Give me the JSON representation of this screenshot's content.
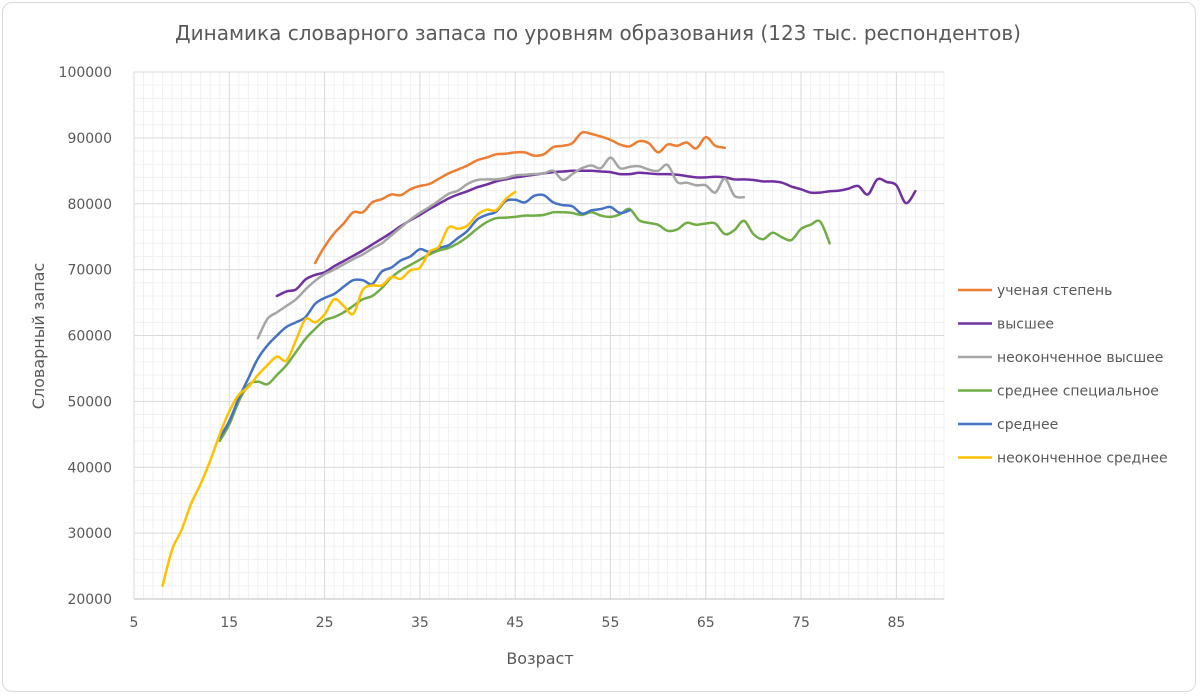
{
  "chart_data": {
    "type": "line",
    "title": "Динамика словарного запаса по уровням образования (123 тыс. респондентов)",
    "xlabel": "Возраст",
    "ylabel": "Словарный запас",
    "xlim": [
      5,
      90
    ],
    "ylim": [
      20000,
      100000
    ],
    "x_ticks": [
      "5",
      "15",
      "25",
      "35",
      "45",
      "55",
      "65",
      "75",
      "85"
    ],
    "y_ticks": [
      "20000",
      "30000",
      "40000",
      "50000",
      "60000",
      "70000",
      "80000",
      "90000",
      "100000"
    ],
    "grid": true,
    "legend_position": "right",
    "series": [
      {
        "name": "ученая степень",
        "color": "#ed7d31",
        "points": [
          [
            24,
            71000
          ],
          [
            25,
            73500
          ],
          [
            26,
            75500
          ],
          [
            27,
            77000
          ],
          [
            28,
            78700
          ],
          [
            29,
            78700
          ],
          [
            30,
            80200
          ],
          [
            31,
            80700
          ],
          [
            32,
            81400
          ],
          [
            33,
            81300
          ],
          [
            34,
            82200
          ],
          [
            35,
            82700
          ],
          [
            36,
            83000
          ],
          [
            37,
            83800
          ],
          [
            38,
            84600
          ],
          [
            39,
            85200
          ],
          [
            40,
            85800
          ],
          [
            41,
            86600
          ],
          [
            42,
            87000
          ],
          [
            43,
            87500
          ],
          [
            44,
            87600
          ],
          [
            45,
            87800
          ],
          [
            46,
            87800
          ],
          [
            47,
            87300
          ],
          [
            48,
            87500
          ],
          [
            49,
            88600
          ],
          [
            50,
            88800
          ],
          [
            51,
            89200
          ],
          [
            52,
            90800
          ],
          [
            53,
            90600
          ],
          [
            54,
            90200
          ],
          [
            55,
            89700
          ],
          [
            56,
            89000
          ],
          [
            57,
            88700
          ],
          [
            58,
            89500
          ],
          [
            59,
            89200
          ],
          [
            60,
            87800
          ],
          [
            61,
            89000
          ],
          [
            62,
            88800
          ],
          [
            63,
            89300
          ],
          [
            64,
            88400
          ],
          [
            65,
            90100
          ],
          [
            66,
            88800
          ],
          [
            67,
            88500
          ]
        ]
      },
      {
        "name": "высшее",
        "color": "#7030a0",
        "points": [
          [
            20,
            66000
          ],
          [
            21,
            66700
          ],
          [
            22,
            67000
          ],
          [
            23,
            68500
          ],
          [
            24,
            69200
          ],
          [
            25,
            69600
          ],
          [
            26,
            70500
          ],
          [
            27,
            71300
          ],
          [
            28,
            72100
          ],
          [
            29,
            72900
          ],
          [
            30,
            73800
          ],
          [
            31,
            74700
          ],
          [
            32,
            75600
          ],
          [
            33,
            76600
          ],
          [
            34,
            77500
          ],
          [
            35,
            78300
          ],
          [
            36,
            79200
          ],
          [
            37,
            80000
          ],
          [
            38,
            80800
          ],
          [
            39,
            81400
          ],
          [
            40,
            81900
          ],
          [
            41,
            82500
          ],
          [
            42,
            82900
          ],
          [
            43,
            83400
          ],
          [
            44,
            83700
          ],
          [
            45,
            84000
          ],
          [
            46,
            84200
          ],
          [
            47,
            84400
          ],
          [
            48,
            84600
          ],
          [
            49,
            84800
          ],
          [
            50,
            84900
          ],
          [
            51,
            85000
          ],
          [
            52,
            85000
          ],
          [
            53,
            85000
          ],
          [
            54,
            84900
          ],
          [
            55,
            84800
          ],
          [
            56,
            84500
          ],
          [
            57,
            84500
          ],
          [
            58,
            84700
          ],
          [
            59,
            84600
          ],
          [
            60,
            84500
          ],
          [
            61,
            84500
          ],
          [
            62,
            84400
          ],
          [
            63,
            84200
          ],
          [
            64,
            84000
          ],
          [
            65,
            84000
          ],
          [
            66,
            84100
          ],
          [
            67,
            84000
          ],
          [
            68,
            83700
          ],
          [
            69,
            83700
          ],
          [
            70,
            83600
          ],
          [
            71,
            83400
          ],
          [
            72,
            83400
          ],
          [
            73,
            83200
          ],
          [
            74,
            82600
          ],
          [
            75,
            82200
          ],
          [
            76,
            81700
          ],
          [
            77,
            81700
          ],
          [
            78,
            81900
          ],
          [
            79,
            82000
          ],
          [
            80,
            82300
          ],
          [
            81,
            82700
          ],
          [
            82,
            81400
          ],
          [
            83,
            83700
          ],
          [
            84,
            83300
          ],
          [
            85,
            82800
          ],
          [
            86,
            80100
          ],
          [
            87,
            81900
          ]
        ]
      },
      {
        "name": "неоконченное высшее",
        "color": "#a5a5a5",
        "points": [
          [
            18,
            59600
          ],
          [
            19,
            62500
          ],
          [
            20,
            63500
          ],
          [
            21,
            64500
          ],
          [
            22,
            65500
          ],
          [
            23,
            67000
          ],
          [
            24,
            68300
          ],
          [
            25,
            69300
          ],
          [
            26,
            70000
          ],
          [
            27,
            70800
          ],
          [
            28,
            71600
          ],
          [
            29,
            72300
          ],
          [
            30,
            73200
          ],
          [
            31,
            74000
          ],
          [
            32,
            75200
          ],
          [
            33,
            76400
          ],
          [
            34,
            77600
          ],
          [
            35,
            78600
          ],
          [
            36,
            79500
          ],
          [
            37,
            80500
          ],
          [
            38,
            81500
          ],
          [
            39,
            82000
          ],
          [
            40,
            83000
          ],
          [
            41,
            83600
          ],
          [
            42,
            83700
          ],
          [
            43,
            83700
          ],
          [
            44,
            83900
          ],
          [
            45,
            84300
          ],
          [
            46,
            84400
          ],
          [
            47,
            84500
          ],
          [
            48,
            84600
          ],
          [
            49,
            85000
          ],
          [
            50,
            83600
          ],
          [
            51,
            84500
          ],
          [
            52,
            85400
          ],
          [
            53,
            85800
          ],
          [
            54,
            85400
          ],
          [
            55,
            87000
          ],
          [
            56,
            85400
          ],
          [
            57,
            85600
          ],
          [
            58,
            85700
          ],
          [
            59,
            85200
          ],
          [
            60,
            85000
          ],
          [
            61,
            85900
          ],
          [
            62,
            83300
          ],
          [
            63,
            83200
          ],
          [
            64,
            82800
          ],
          [
            65,
            82800
          ],
          [
            66,
            81700
          ],
          [
            67,
            83800
          ],
          [
            68,
            81200
          ],
          [
            69,
            81000
          ]
        ]
      },
      {
        "name": "среднее специальное",
        "color": "#70ad47",
        "points": [
          [
            14,
            44000
          ],
          [
            15,
            46500
          ],
          [
            16,
            50000
          ],
          [
            17,
            52500
          ],
          [
            18,
            53000
          ],
          [
            19,
            52600
          ],
          [
            20,
            54000
          ],
          [
            21,
            55500
          ],
          [
            22,
            57500
          ],
          [
            23,
            59500
          ],
          [
            24,
            61000
          ],
          [
            25,
            62300
          ],
          [
            26,
            62800
          ],
          [
            27,
            63500
          ],
          [
            28,
            64500
          ],
          [
            29,
            65500
          ],
          [
            30,
            66000
          ],
          [
            31,
            67200
          ],
          [
            32,
            68800
          ],
          [
            33,
            69900
          ],
          [
            34,
            70700
          ],
          [
            35,
            71500
          ],
          [
            36,
            72300
          ],
          [
            37,
            72900
          ],
          [
            38,
            73300
          ],
          [
            39,
            74000
          ],
          [
            40,
            75000
          ],
          [
            41,
            76200
          ],
          [
            42,
            77200
          ],
          [
            43,
            77800
          ],
          [
            44,
            77900
          ],
          [
            45,
            78000
          ],
          [
            46,
            78200
          ],
          [
            47,
            78200
          ],
          [
            48,
            78300
          ],
          [
            49,
            78700
          ],
          [
            50,
            78700
          ],
          [
            51,
            78600
          ],
          [
            52,
            78300
          ],
          [
            53,
            78700
          ],
          [
            54,
            78200
          ],
          [
            55,
            78000
          ],
          [
            56,
            78400
          ],
          [
            57,
            79200
          ],
          [
            58,
            77500
          ],
          [
            59,
            77100
          ],
          [
            60,
            76800
          ],
          [
            61,
            75900
          ],
          [
            62,
            76100
          ],
          [
            63,
            77100
          ],
          [
            64,
            76800
          ],
          [
            65,
            77000
          ],
          [
            66,
            77000
          ],
          [
            67,
            75400
          ],
          [
            68,
            76000
          ],
          [
            69,
            77400
          ],
          [
            70,
            75400
          ],
          [
            71,
            74600
          ],
          [
            72,
            75600
          ],
          [
            73,
            74900
          ],
          [
            74,
            74500
          ],
          [
            75,
            76200
          ],
          [
            76,
            76800
          ],
          [
            77,
            77300
          ],
          [
            78,
            74000
          ]
        ]
      },
      {
        "name": "среднее",
        "color": "#4472c4",
        "points": [
          [
            14,
            44500
          ],
          [
            15,
            47000
          ],
          [
            16,
            50500
          ],
          [
            17,
            53500
          ],
          [
            18,
            56500
          ],
          [
            19,
            58500
          ],
          [
            20,
            60000
          ],
          [
            21,
            61300
          ],
          [
            22,
            62000
          ],
          [
            23,
            62800
          ],
          [
            24,
            64800
          ],
          [
            25,
            65700
          ],
          [
            26,
            66300
          ],
          [
            27,
            67400
          ],
          [
            28,
            68400
          ],
          [
            29,
            68400
          ],
          [
            30,
            67800
          ],
          [
            31,
            69700
          ],
          [
            32,
            70300
          ],
          [
            33,
            71400
          ],
          [
            34,
            72000
          ],
          [
            35,
            73100
          ],
          [
            36,
            72700
          ],
          [
            37,
            73300
          ],
          [
            38,
            73700
          ],
          [
            39,
            74800
          ],
          [
            40,
            75900
          ],
          [
            41,
            77600
          ],
          [
            42,
            78300
          ],
          [
            43,
            78800
          ],
          [
            44,
            80400
          ],
          [
            45,
            80600
          ],
          [
            46,
            80200
          ],
          [
            47,
            81200
          ],
          [
            48,
            81300
          ],
          [
            49,
            80200
          ],
          [
            50,
            79800
          ],
          [
            51,
            79600
          ],
          [
            52,
            78500
          ],
          [
            53,
            79000
          ],
          [
            54,
            79200
          ],
          [
            55,
            79500
          ],
          [
            56,
            78600
          ],
          [
            57,
            79000
          ]
        ]
      },
      {
        "name": "неоконченное среднее",
        "color": "#ffc000",
        "points": [
          [
            8,
            22000
          ],
          [
            9,
            27500
          ],
          [
            10,
            30500
          ],
          [
            11,
            34500
          ],
          [
            12,
            37500
          ],
          [
            13,
            41000
          ],
          [
            14,
            45000
          ],
          [
            15,
            48500
          ],
          [
            16,
            51000
          ],
          [
            17,
            52200
          ],
          [
            18,
            54000
          ],
          [
            19,
            55500
          ],
          [
            20,
            56800
          ],
          [
            21,
            56200
          ],
          [
            22,
            59300
          ],
          [
            23,
            62500
          ],
          [
            24,
            62000
          ],
          [
            25,
            63200
          ],
          [
            26,
            65500
          ],
          [
            27,
            64500
          ],
          [
            28,
            63300
          ],
          [
            29,
            66900
          ],
          [
            30,
            67600
          ],
          [
            31,
            67600
          ],
          [
            32,
            68900
          ],
          [
            33,
            68600
          ],
          [
            34,
            69900
          ],
          [
            35,
            70300
          ],
          [
            36,
            72700
          ],
          [
            37,
            73500
          ],
          [
            38,
            76400
          ],
          [
            39,
            76200
          ],
          [
            40,
            76700
          ],
          [
            41,
            78300
          ],
          [
            42,
            79100
          ],
          [
            43,
            79000
          ],
          [
            44,
            80700
          ],
          [
            45,
            81800
          ]
        ]
      }
    ]
  }
}
